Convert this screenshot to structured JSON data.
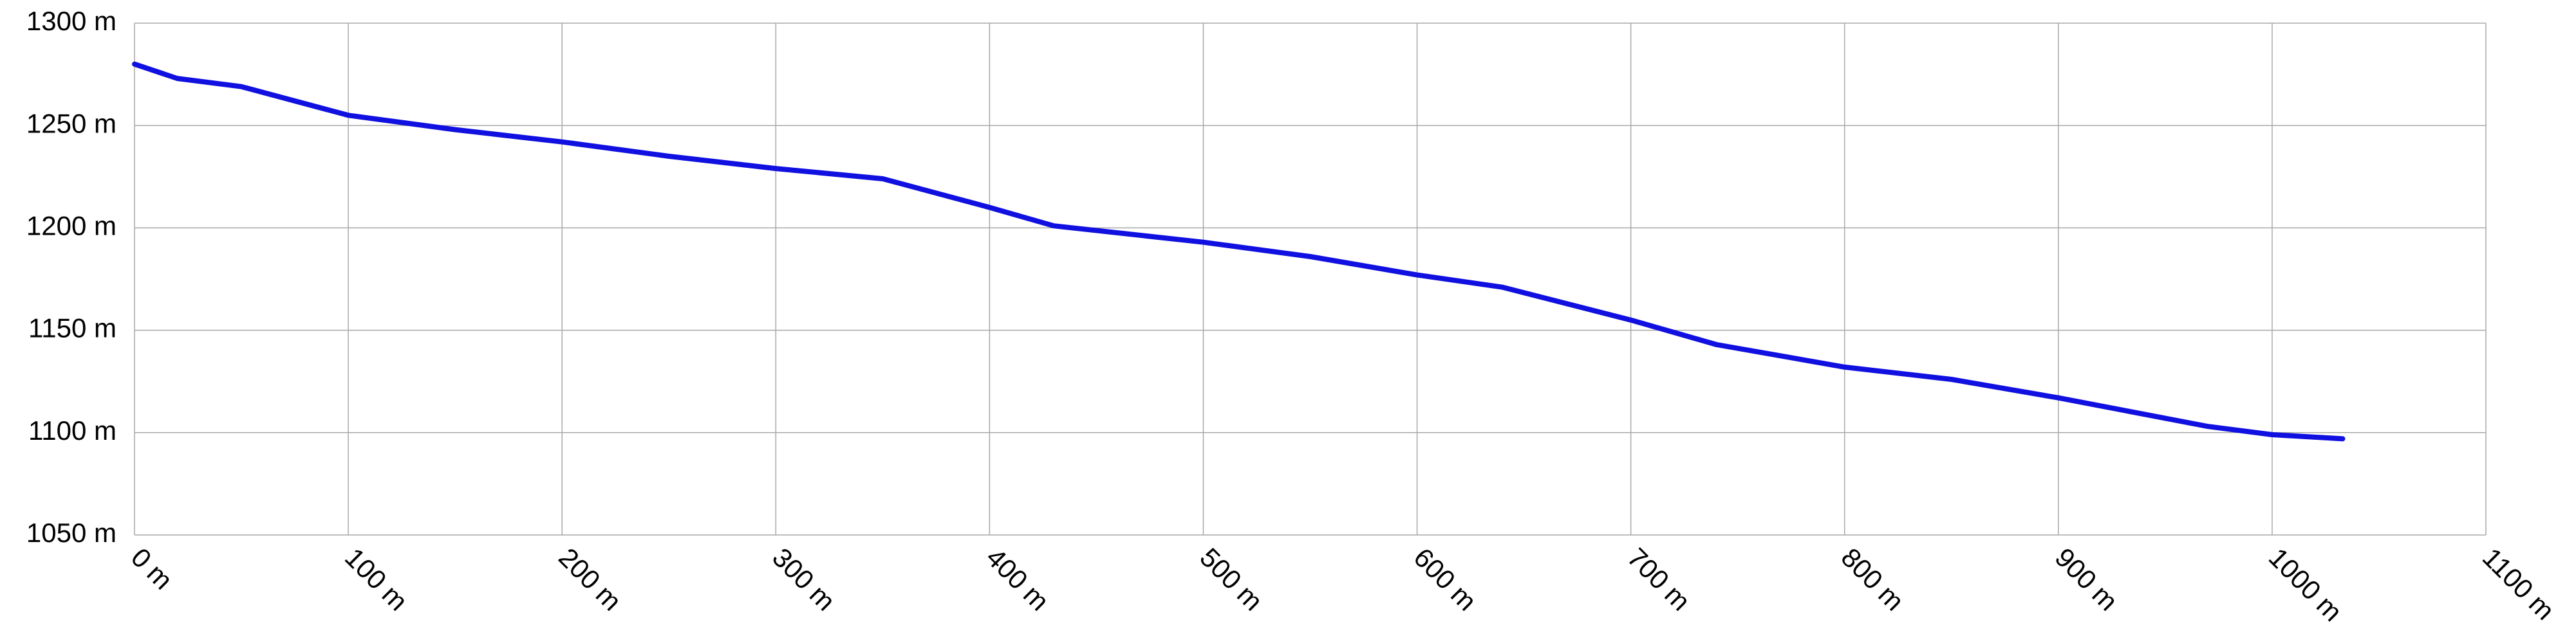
{
  "chart_data": {
    "type": "line",
    "x": [
      0,
      20,
      50,
      100,
      150,
      200,
      250,
      300,
      350,
      400,
      430,
      500,
      550,
      600,
      640,
      700,
      740,
      800,
      850,
      900,
      970,
      1000,
      1033
    ],
    "values": [
      1280,
      1273,
      1269,
      1255,
      1248,
      1242,
      1235,
      1229,
      1224,
      1210,
      1201,
      1193,
      1186,
      1177,
      1171,
      1155,
      1143,
      1132,
      1126,
      1117,
      1103,
      1099,
      1097
    ],
    "color": "#1010e0",
    "xlim": [
      0,
      1100
    ],
    "xticks": [
      {
        "value": 0,
        "label": "0 m"
      },
      {
        "value": 100,
        "label": "100 m"
      },
      {
        "value": 200,
        "label": "200 m"
      },
      {
        "value": 300,
        "label": "300 m"
      },
      {
        "value": 400,
        "label": "400 m"
      },
      {
        "value": 500,
        "label": "500 m"
      },
      {
        "value": 600,
        "label": "600 m"
      },
      {
        "value": 700,
        "label": "700 m"
      },
      {
        "value": 800,
        "label": "800 m"
      },
      {
        "value": 900,
        "label": "900 m"
      },
      {
        "value": 1000,
        "label": "1000 m"
      },
      {
        "value": 1100,
        "label": "1100 m"
      }
    ],
    "ylim": [
      1050,
      1300
    ],
    "yticks": [
      {
        "value": 1050,
        "label": "1050 m"
      },
      {
        "value": 1100,
        "label": "1100 m"
      },
      {
        "value": 1150,
        "label": "1150 m"
      },
      {
        "value": 1200,
        "label": "1200 m"
      },
      {
        "value": 1250,
        "label": "1250 m"
      },
      {
        "value": 1300,
        "label": "1300 m"
      }
    ],
    "grid": true
  }
}
